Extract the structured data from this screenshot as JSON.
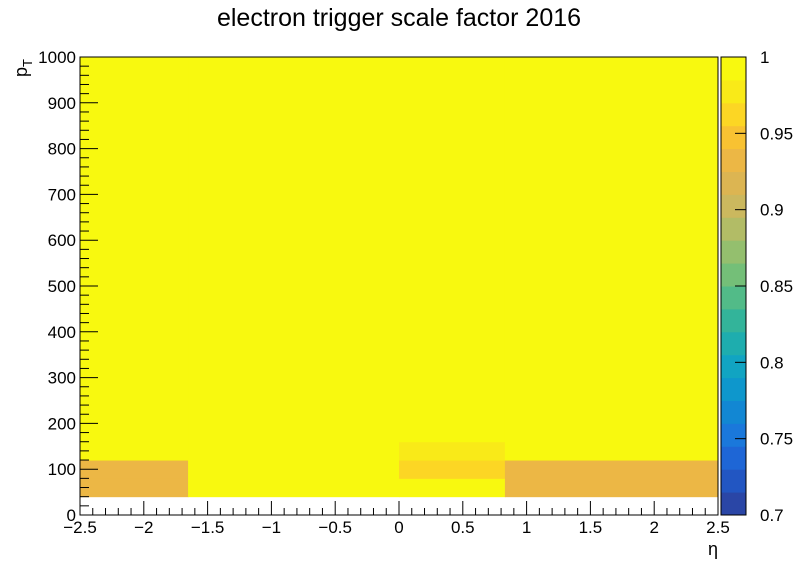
{
  "chart_data": {
    "type": "heatmap",
    "title": "electron trigger scale factor 2016",
    "xlabel": "η",
    "ylabel": "p_T",
    "ylabel_main": "p",
    "ylabel_sub": "T",
    "xlim": [
      -2.5,
      2.5
    ],
    "ylim": [
      0,
      1000
    ],
    "x_ticks": [
      -2.5,
      -2,
      -1.5,
      -1,
      -0.5,
      0,
      0.5,
      1,
      1.5,
      2,
      2.5
    ],
    "x_tick_labels": [
      "−2.5",
      "−2",
      "−1.5",
      "−1",
      "−0.5",
      "0",
      "0.5",
      "1",
      "1.5",
      "2",
      "2.5"
    ],
    "y_ticks": [
      0,
      100,
      200,
      300,
      400,
      500,
      600,
      700,
      800,
      900,
      1000
    ],
    "y_tick_labels": [
      "0",
      "100",
      "200",
      "300",
      "400",
      "500",
      "600",
      "700",
      "800",
      "900",
      "1000"
    ],
    "zlim": [
      0.7,
      1.0
    ],
    "z_ticks": [
      0.7,
      0.75,
      0.8,
      0.85,
      0.9,
      0.95,
      1.0
    ],
    "z_tick_labels": [
      "0.7",
      "0.75",
      "0.8",
      "0.85",
      "0.9",
      "0.95",
      "1"
    ],
    "z_colors": [
      "#2a46a6",
      "#2256c2",
      "#1e66d6",
      "#1a78db",
      "#1287d3",
      "#0e97cc",
      "#11a4c2",
      "#1eadae",
      "#33b49a",
      "#52bb88",
      "#74bf78",
      "#94bf6e",
      "#b2bc66",
      "#cbb85e",
      "#dcb552",
      "#ecb745",
      "#f8c232",
      "#fcd624",
      "#f9ea18",
      "#f8f90f"
    ],
    "cells": [
      {
        "x0": -2.5,
        "x1": -1.653,
        "y0": 40,
        "y1": 80,
        "z": 0.93
      },
      {
        "x0": -2.5,
        "x1": -1.653,
        "y0": 80,
        "y1": 120,
        "z": 0.925
      },
      {
        "x0": -2.5,
        "x1": -1.653,
        "y0": 120,
        "y1": 1000,
        "z": 1.0
      },
      {
        "x0": -1.653,
        "x1": 0.0,
        "y0": 40,
        "y1": 1000,
        "z": 1.0
      },
      {
        "x0": 0.0,
        "x1": 0.83,
        "y0": 40,
        "y1": 80,
        "z": 0.985
      },
      {
        "x0": 0.0,
        "x1": 0.83,
        "y0": 80,
        "y1": 120,
        "z": 0.96
      },
      {
        "x0": 0.0,
        "x1": 0.83,
        "y0": 120,
        "y1": 160,
        "z": 0.975
      },
      {
        "x0": 0.0,
        "x1": 0.83,
        "y0": 160,
        "y1": 1000,
        "z": 1.0
      },
      {
        "x0": 0.83,
        "x1": 2.5,
        "y0": 40,
        "y1": 120,
        "z": 0.93
      },
      {
        "x0": 0.83,
        "x1": 2.5,
        "y0": 120,
        "y1": 1000,
        "z": 1.0
      }
    ]
  }
}
